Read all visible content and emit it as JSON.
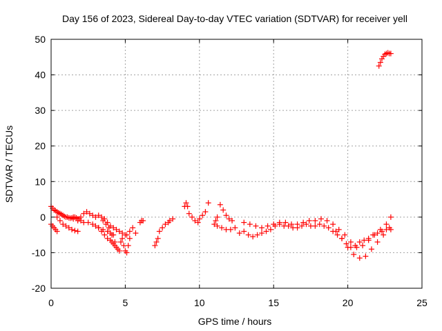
{
  "chart_data": {
    "type": "scatter",
    "title": "Day 156 of 2023, Sidereal Day-to-day VTEC variation (SDTVAR) for receiver yell",
    "xlabel": "GPS time / hours",
    "ylabel": "SDTVAR / TECUs",
    "xlim": [
      0,
      25
    ],
    "ylim": [
      -20,
      50
    ],
    "xticks": [
      0,
      5,
      10,
      15,
      20,
      25
    ],
    "yticks": [
      -20,
      -10,
      0,
      10,
      20,
      30,
      40,
      50
    ],
    "grid": true,
    "marker": "+",
    "series": [
      {
        "name": "SDTVAR",
        "color": "#ff0000",
        "x": [
          0.0,
          0.1,
          0.2,
          0.3,
          0.4,
          0.5,
          0.6,
          0.7,
          0.8,
          0.9,
          1.0,
          1.1,
          1.2,
          1.3,
          1.4,
          1.5,
          1.6,
          1.7,
          1.8,
          1.9,
          2.0,
          2.2,
          2.4,
          2.6,
          2.8,
          3.0,
          3.2,
          3.4,
          3.6,
          3.8,
          4.0,
          4.2,
          4.4,
          4.6,
          4.8,
          5.0,
          0.0,
          0.1,
          0.2,
          0.3,
          0.4,
          0.4,
          0.6,
          0.8,
          1.0,
          1.2,
          1.4,
          1.6,
          1.8,
          1.5,
          1.8,
          2.0,
          2.2,
          2.5,
          2.8,
          3.0,
          3.2,
          3.5,
          3.8,
          4.0,
          4.2,
          3.2,
          3.4,
          3.6,
          3.8,
          4.0,
          4.1,
          4.2,
          4.3,
          4.4,
          4.5,
          4.6,
          4.7,
          4.8,
          4.9,
          5.0,
          5.1,
          5.2,
          5.3,
          3.5,
          3.7,
          3.9,
          4.1,
          4.3,
          5.1,
          5.3,
          5.5,
          5.7,
          6.0,
          6.1,
          6.2,
          7.0,
          7.1,
          7.2,
          7.3,
          7.5,
          7.7,
          7.9,
          8.0,
          8.2,
          9.0,
          9.1,
          9.2,
          9.3,
          9.5,
          9.7,
          9.9,
          10.0,
          10.2,
          10.4,
          10.6,
          11.0,
          11.1,
          11.2,
          11.4,
          11.6,
          11.8,
          12.0,
          12.2,
          11.2,
          11.5,
          11.8,
          12.1,
          12.4,
          12.7,
          13.0,
          13.3,
          13.6,
          13.9,
          14.2,
          14.5,
          14.8,
          15.1,
          15.4,
          15.7,
          16.0,
          16.3,
          16.6,
          16.9,
          17.2,
          17.5,
          17.8,
          18.1,
          18.4,
          18.7,
          19.0,
          19.3,
          19.6,
          19.9,
          20.2,
          20.5,
          20.8,
          21.1,
          21.4,
          21.7,
          22.0,
          22.3,
          22.6,
          22.9,
          13.0,
          13.4,
          13.8,
          14.2,
          14.6,
          15.0,
          15.4,
          15.8,
          16.2,
          16.6,
          17.0,
          17.4,
          17.8,
          18.2,
          18.6,
          19.0,
          19.4,
          19.8,
          20.2,
          20.6,
          21.0,
          21.4,
          21.8,
          22.2,
          22.6,
          22.9,
          19.2,
          19.6,
          20.0,
          20.4,
          20.8,
          21.2,
          21.6,
          22.0,
          22.4,
          22.8,
          22.1,
          22.2,
          22.3,
          22.4,
          22.5,
          22.6,
          22.7,
          22.8,
          22.9
        ],
        "y": [
          3.0,
          2.5,
          2.0,
          1.8,
          1.5,
          1.2,
          1.0,
          0.8,
          0.5,
          0.2,
          0.0,
          0.0,
          -0.2,
          -0.3,
          -0.2,
          0.0,
          0.0,
          -0.2,
          -0.5,
          -0.5,
          0.0,
          1.0,
          1.5,
          1.0,
          0.5,
          0.0,
          0.5,
          0.0,
          -0.5,
          -1.5,
          -2.5,
          -3.0,
          -3.5,
          -4.0,
          -4.5,
          -5.0,
          -2.0,
          -2.5,
          -3.0,
          -3.5,
          -4.0,
          0.0,
          -1.0,
          -2.0,
          -2.5,
          -3.0,
          -3.5,
          -3.8,
          -4.0,
          -0.5,
          -1.0,
          -1.0,
          -1.5,
          -1.5,
          -2.0,
          -2.5,
          -3.0,
          -3.5,
          -4.0,
          -4.5,
          -5.0,
          -3.0,
          -4.0,
          -5.0,
          -6.0,
          -6.5,
          -7.0,
          -7.5,
          -8.0,
          -8.5,
          -9.0,
          -9.5,
          -7.0,
          -6.0,
          -8.0,
          -9.5,
          -10.0,
          -8.0,
          -6.0,
          -1.0,
          -2.0,
          -3.0,
          -5.0,
          -7.0,
          -5.0,
          -4.0,
          -3.0,
          -4.5,
          -1.5,
          -1.0,
          -1.0,
          -8.0,
          -7.0,
          -6.0,
          -4.0,
          -3.0,
          -2.0,
          -1.5,
          -1.0,
          -0.5,
          3.0,
          4.0,
          3.0,
          1.0,
          0.0,
          -1.0,
          -1.5,
          -0.5,
          0.5,
          1.5,
          4.0,
          -2.0,
          -1.0,
          0.0,
          3.5,
          2.0,
          0.5,
          -0.5,
          -1.0,
          -2.5,
          -3.0,
          -3.5,
          -3.5,
          -3.0,
          -4.5,
          -4.0,
          -5.0,
          -5.5,
          -5.0,
          -4.5,
          -4.0,
          -3.5,
          -2.5,
          -2.0,
          -2.5,
          -2.5,
          -3.0,
          -3.0,
          -2.5,
          -2.0,
          -2.5,
          -2.5,
          -2.0,
          -2.5,
          -3.0,
          -4.0,
          -5.0,
          -6.0,
          -7.5,
          -8.5,
          -8.0,
          -7.0,
          -6.5,
          -6.0,
          -5.0,
          -4.5,
          -4.0,
          -3.5,
          -3.5,
          -1.5,
          -2.0,
          -2.5,
          -3.0,
          -2.5,
          -2.0,
          -1.5,
          -1.5,
          -2.0,
          -2.0,
          -1.5,
          -1.0,
          -1.0,
          -0.5,
          -1.0,
          -2.0,
          -3.5,
          -5.0,
          -7.0,
          -8.5,
          -8.0,
          -6.5,
          -5.0,
          -3.5,
          -2.0,
          0.0,
          -4.0,
          -6.0,
          -8.5,
          -10.5,
          -11.5,
          -11.0,
          -9.0,
          -7.0,
          -5.0,
          -3.0,
          42.5,
          43.5,
          44.5,
          45.2,
          45.8,
          46.0,
          46.2,
          46.0,
          46.0
        ]
      }
    ]
  }
}
